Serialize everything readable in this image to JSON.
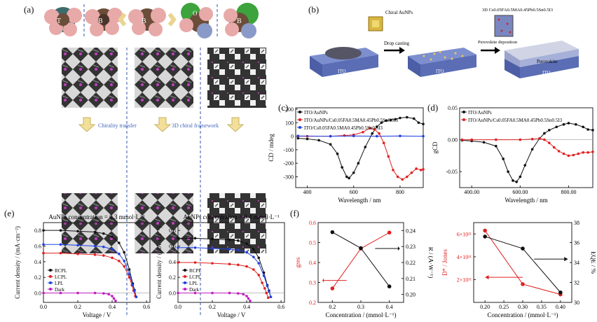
{
  "panel_labels": {
    "a": "(a)",
    "b": "(b)",
    "c": "(c)",
    "d": "(d)",
    "e": "(e)",
    "f": "(f)"
  },
  "panel_a": {
    "molecule_letters": [
      "T",
      "B",
      "B",
      "O",
      "B"
    ],
    "atom_letters": [
      "H",
      "N",
      "H",
      "H",
      "N",
      "H",
      "H",
      "N",
      "H",
      "O",
      "H",
      "N",
      "H",
      "N",
      "H"
    ],
    "chirality_transfer": "Chirality transfer",
    "framework": "3D chiral framework"
  },
  "panel_b": {
    "chiral_label": "Chiral AuNPs",
    "drop_casting": "Drop casting",
    "perovskite_formula": "3D Cs0.05FA0.5MA0.45Pb0.5Sn0.5I3",
    "perovskite_deposition": "Perovskite deposition",
    "substrate": "ITO",
    "film": "Perovskite"
  },
  "chart_data": [
    {
      "id": "c",
      "type": "line",
      "xlabel": "Wavelength / nm",
      "ylabel": "CD / mdeg",
      "xlim": [
        350,
        900
      ],
      "ylim": [
        -380,
        210
      ],
      "xticks": [
        400,
        600,
        800
      ],
      "yticks": [
        -300,
        -200,
        -100,
        0,
        100,
        200
      ],
      "series": [
        {
          "name": "ITO/AuNPs",
          "color": "#111111",
          "x": [
            360,
            400,
            450,
            500,
            530,
            550,
            570,
            580,
            600,
            620,
            650,
            680,
            700,
            720,
            740,
            760,
            780,
            800,
            830,
            860,
            880,
            900
          ],
          "y": [
            -15,
            -20,
            -30,
            -60,
            -130,
            -230,
            -300,
            -310,
            -270,
            -200,
            -80,
            20,
            70,
            100,
            115,
            120,
            125,
            135,
            140,
            130,
            100,
            90
          ]
        },
        {
          "name": "ITO/AuNPs/Cs0.05FA0.5MA0.45Pb0.5Sn0.5I3",
          "color": "#e02020",
          "x": [
            360,
            400,
            500,
            560,
            600,
            640,
            670,
            690,
            710,
            730,
            750,
            770,
            790,
            810,
            830,
            850,
            870,
            890,
            900
          ],
          "y": [
            0,
            0,
            0,
            5,
            10,
            30,
            60,
            50,
            20,
            -50,
            -150,
            -250,
            -300,
            -320,
            -300,
            -270,
            -240,
            -250,
            -245
          ]
        },
        {
          "name": "ITO/Cs0.05FA0.5MA0.45Pb0.5Sn0.5I3",
          "color": "#2040e0",
          "x": [
            360,
            500,
            600,
            700,
            800,
            900
          ],
          "y": [
            2,
            0,
            2,
            0,
            2,
            0
          ]
        }
      ]
    },
    {
      "id": "d",
      "type": "line",
      "xlabel": "Wavelength / nm",
      "ylabel": "gCD",
      "xlim": [
        350,
        900
      ],
      "ylim": [
        -0.075,
        0.05
      ],
      "xticks": [
        400,
        600,
        800
      ],
      "yticks": [
        0.05,
        0.0,
        -0.05
      ],
      "series": [
        {
          "name": "ITO/AuNPs",
          "color": "#111111",
          "x": [
            360,
            400,
            450,
            500,
            530,
            550,
            570,
            585,
            600,
            620,
            650,
            680,
            700,
            720,
            750,
            780,
            800,
            830,
            860,
            880,
            900
          ],
          "y": [
            -0.001,
            -0.002,
            -0.004,
            -0.01,
            -0.03,
            -0.05,
            -0.064,
            -0.066,
            -0.058,
            -0.04,
            -0.015,
            0.002,
            0.01,
            0.015,
            0.02,
            0.024,
            0.026,
            0.024,
            0.02,
            0.016,
            0.015
          ]
        },
        {
          "name": "ITO/AuNPs/Cs0.05FA0.5MA0.45Pb0.5Sn0.5I3",
          "color": "#e02020",
          "x": [
            360,
            400,
            500,
            600,
            650,
            680,
            700,
            720,
            740,
            760,
            780,
            800,
            820,
            840,
            860,
            880,
            900
          ],
          "y": [
            0,
            0,
            0,
            0,
            0.001,
            0.002,
            0.0,
            -0.005,
            -0.012,
            -0.018,
            -0.022,
            -0.025,
            -0.024,
            -0.022,
            -0.02,
            -0.02,
            -0.019
          ]
        }
      ]
    },
    {
      "id": "e1",
      "type": "line",
      "title": "AuNPs concentration = 0.3 mmol·L⁻¹",
      "xlabel": "Voltage / V",
      "ylabel": "Current density / (mA·cm⁻²)",
      "xlim": [
        0,
        0.62
      ],
      "ylim": [
        -0.12,
        0.9
      ],
      "xticks": [
        0.0,
        0.2,
        0.4,
        0.6
      ],
      "yticks": [
        0.0,
        0.2,
        0.4,
        0.6,
        0.8
      ],
      "series": [
        {
          "name": "RCPL",
          "color": "#111111",
          "x": [
            0,
            0.1,
            0.2,
            0.3,
            0.35,
            0.4,
            0.44,
            0.47,
            0.5,
            0.52,
            0.53,
            0.54
          ],
          "y": [
            0.8,
            0.8,
            0.79,
            0.78,
            0.76,
            0.72,
            0.64,
            0.52,
            0.3,
            0.12,
            0.04,
            -0.05
          ]
        },
        {
          "name": "LCPL",
          "color": "#e02020",
          "x": [
            0,
            0.1,
            0.2,
            0.3,
            0.35,
            0.4,
            0.44,
            0.47,
            0.5,
            0.515,
            0.525,
            0.535
          ],
          "y": [
            0.51,
            0.51,
            0.5,
            0.49,
            0.48,
            0.45,
            0.41,
            0.34,
            0.2,
            0.1,
            0.03,
            -0.04
          ]
        },
        {
          "name": "LPL",
          "color": "#2040e0",
          "x": [
            0,
            0.1,
            0.2,
            0.3,
            0.35,
            0.4,
            0.44,
            0.47,
            0.5,
            0.52,
            0.53,
            0.54
          ],
          "y": [
            0.62,
            0.62,
            0.61,
            0.6,
            0.59,
            0.56,
            0.5,
            0.41,
            0.24,
            0.1,
            0.03,
            -0.05
          ]
        },
        {
          "name": "Dark",
          "color": "#c020c0",
          "x": [
            0,
            0.1,
            0.2,
            0.3,
            0.35,
            0.38,
            0.4,
            0.41,
            0.42
          ],
          "y": [
            0,
            0,
            0,
            0,
            -0.005,
            -0.015,
            -0.04,
            -0.07,
            -0.1
          ]
        }
      ]
    },
    {
      "id": "e2",
      "type": "line",
      "title": "AuNPs concentration = 0.4 mmol·L⁻¹",
      "xlabel": "Voltage / V",
      "ylabel": "Current density / (mA·cm⁻²)",
      "xlim": [
        0,
        0.62
      ],
      "ylim": [
        -0.12,
        0.9
      ],
      "xticks": [
        0.0,
        0.2,
        0.4,
        0.6
      ],
      "yticks": [
        0.0,
        0.2,
        0.4,
        0.6,
        0.8
      ],
      "series": [
        {
          "name": "RCPL",
          "color": "#111111",
          "x": [
            0,
            0.1,
            0.2,
            0.3,
            0.35,
            0.4,
            0.44,
            0.47,
            0.5,
            0.52,
            0.53,
            0.54
          ],
          "y": [
            0.7,
            0.7,
            0.69,
            0.68,
            0.67,
            0.63,
            0.56,
            0.45,
            0.26,
            0.1,
            0.03,
            -0.05
          ]
        },
        {
          "name": "LCPL",
          "color": "#e02020",
          "x": [
            0,
            0.1,
            0.2,
            0.3,
            0.35,
            0.4,
            0.44,
            0.47,
            0.49,
            0.505,
            0.515,
            0.525
          ],
          "y": [
            0.39,
            0.39,
            0.38,
            0.37,
            0.36,
            0.34,
            0.3,
            0.23,
            0.13,
            0.06,
            0.0,
            -0.06
          ]
        },
        {
          "name": "LPL",
          "color": "#2040e0",
          "x": [
            0,
            0.1,
            0.2,
            0.3,
            0.35,
            0.4,
            0.44,
            0.47,
            0.5,
            0.52,
            0.53,
            0.54
          ],
          "y": [
            0.58,
            0.58,
            0.57,
            0.56,
            0.55,
            0.52,
            0.46,
            0.38,
            0.22,
            0.09,
            0.02,
            -0.05
          ]
        },
        {
          "name": "Dark",
          "color": "#c020c0",
          "x": [
            0,
            0.1,
            0.2,
            0.3,
            0.35,
            0.38,
            0.4,
            0.41,
            0.42
          ],
          "y": [
            0,
            0,
            0,
            0,
            -0.005,
            -0.015,
            -0.04,
            -0.07,
            -0.1
          ]
        }
      ]
    },
    {
      "id": "f1",
      "type": "line",
      "xlabel": "Concentration / (mmol·L⁻¹)",
      "ylabel": "gres",
      "y2label": "R / (A·W⁻¹)",
      "xlim": [
        0.15,
        0.45
      ],
      "ylim": [
        0.2,
        0.6
      ],
      "y2lim": [
        0.195,
        0.245
      ],
      "xticks": [
        0.2,
        0.3,
        0.4
      ],
      "yticks": [
        0.2,
        0.3,
        0.4,
        0.5,
        0.6
      ],
      "y2ticks": [
        0.2,
        0.21,
        0.22,
        0.23,
        0.24
      ],
      "series": [
        {
          "name": "gres",
          "color": "#e02020",
          "axis": "left",
          "x": [
            0.2,
            0.3,
            0.4
          ],
          "y": [
            0.27,
            0.47,
            0.55
          ]
        },
        {
          "name": "R",
          "color": "#111111",
          "axis": "right",
          "x": [
            0.2,
            0.3,
            0.4
          ],
          "y": [
            0.239,
            0.229,
            0.205
          ]
        }
      ]
    },
    {
      "id": "f2",
      "type": "line",
      "xlabel": "Concentration / (mmol·L⁻¹)",
      "ylabel": "D* / Jones",
      "y2label": "EQE / %",
      "xlim": [
        0.17,
        0.43
      ],
      "ylim": [
        0,
        700000000000.0
      ],
      "y2lim": [
        30,
        38
      ],
      "xticks": [
        0.2,
        0.25,
        0.3,
        0.35,
        0.4
      ],
      "ytick_labels": [
        "2×10¹¹",
        "4×10¹¹",
        "6×10¹¹"
      ],
      "yticks": [
        200000000000.0,
        400000000000.0,
        600000000000.0
      ],
      "y2ticks": [
        30,
        32,
        34,
        36,
        38
      ],
      "series": [
        {
          "name": "D*",
          "color": "#e02020",
          "axis": "left",
          "x": [
            0.2,
            0.3,
            0.4
          ],
          "y": [
            630000000000.0,
            160000000000.0,
            70000000000.0
          ]
        },
        {
          "name": "EQE",
          "color": "#111111",
          "axis": "right",
          "x": [
            0.2,
            0.3,
            0.4
          ],
          "y": [
            36.6,
            35.4,
            31.0
          ]
        }
      ]
    }
  ]
}
